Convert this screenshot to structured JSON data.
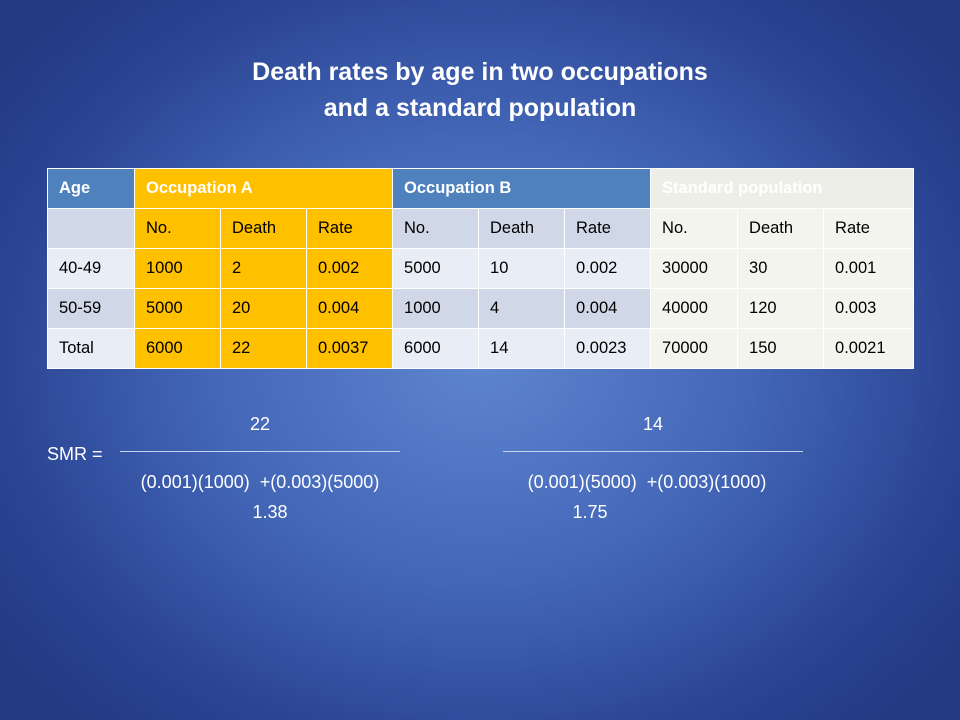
{
  "title": {
    "line1": "Death rates by age in two occupations",
    "line2": "and a standard population"
  },
  "table": {
    "groups": [
      "Age",
      "Occupation A",
      "Occupation B",
      "Standard population"
    ],
    "subheaders": [
      "No.",
      "Death",
      "Rate",
      "No.",
      "Death",
      "Rate",
      "No.",
      "Death",
      "Rate"
    ],
    "rows": [
      [
        "40-49",
        "1000",
        "2",
        "0.002",
        "5000",
        "10",
        "0.002",
        "30000",
        "30",
        "0.001"
      ],
      [
        "50-59",
        "5000",
        "20",
        "0.004",
        "1000",
        "4",
        "0.004",
        "40000",
        "120",
        "0.003"
      ],
      [
        "Total",
        "6000",
        "22",
        "0.0037",
        "6000",
        "14",
        "0.0023",
        "70000",
        "150",
        "0.0021"
      ]
    ]
  },
  "smr": {
    "label": "SMR =",
    "a": {
      "numerator": "22",
      "denominator": "(0.001)(1000)  +(0.003)(5000)",
      "result": "1.38"
    },
    "b": {
      "numerator": "14",
      "denominator": "(0.001)(5000)  +(0.003)(1000)",
      "result": "1.75"
    }
  }
}
